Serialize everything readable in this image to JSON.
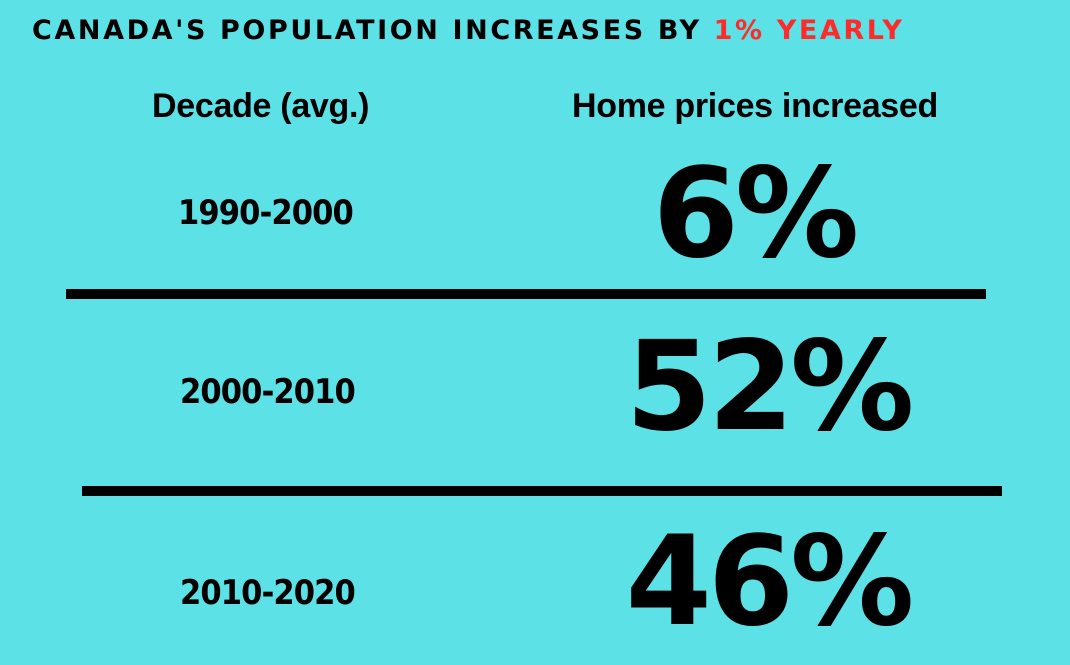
{
  "title": {
    "prefix": "CANADA'S POPULATION INCREASES BY ",
    "highlight": "1% YEARLY",
    "highlight_color": "#ff2a2a"
  },
  "headers": {
    "decade": "Decade (avg.)",
    "prices": "Home prices increased"
  },
  "rows": [
    {
      "decade": "1990-2000",
      "value": "6%"
    },
    {
      "decade": "2000-2010",
      "value": "52%"
    },
    {
      "decade": "2010-2020",
      "value": "46%"
    }
  ],
  "background_color": "#5ce1e6"
}
